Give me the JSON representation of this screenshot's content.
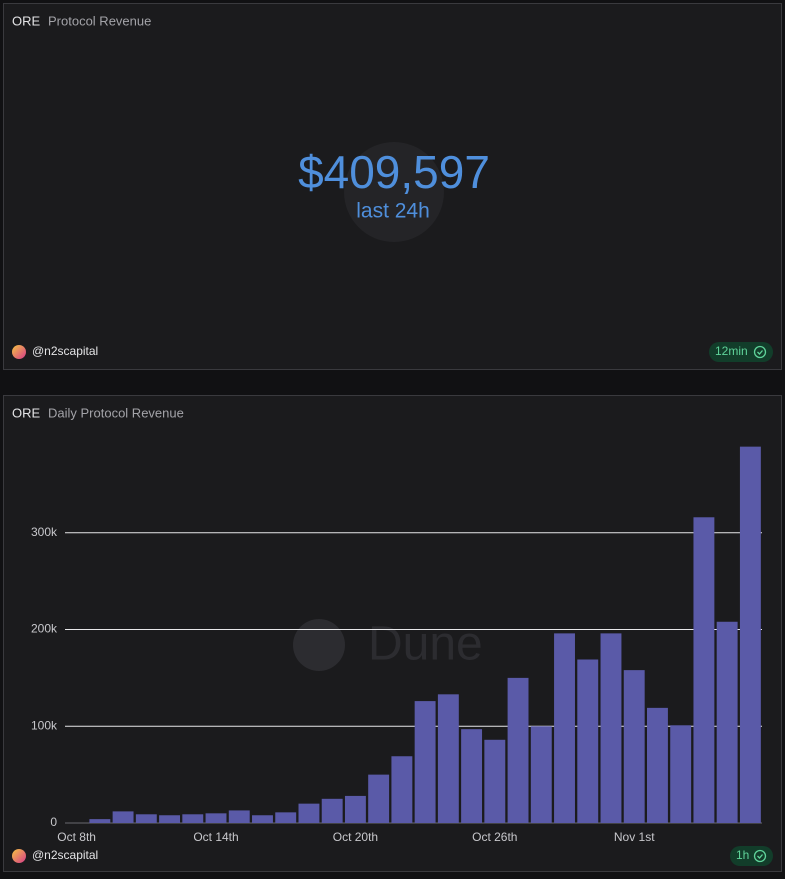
{
  "counter": {
    "project": "ORE",
    "title": "Protocol Revenue",
    "value": "$409,597",
    "caption": "last 24h",
    "author": "@n2scapital",
    "refresh": "12min"
  },
  "chart_data": {
    "type": "bar",
    "project": "ORE",
    "title": "Daily Protocol Revenue",
    "author": "@n2scapital",
    "refresh": "1h",
    "watermark": "Dune",
    "categories": [
      "Oct 8th",
      null,
      null,
      null,
      null,
      null,
      "Oct 14th",
      null,
      null,
      null,
      null,
      null,
      "Oct 20th",
      null,
      null,
      null,
      null,
      null,
      "Oct 26th",
      null,
      null,
      null,
      null,
      null,
      "Nov 1st",
      null,
      null,
      null,
      null,
      null
    ],
    "values": [
      0,
      4000,
      12000,
      9000,
      8000,
      9000,
      10000,
      13000,
      8000,
      11000,
      20000,
      25000,
      28000,
      50000,
      69000,
      126000,
      133000,
      97000,
      86000,
      150000,
      100000,
      196000,
      169000,
      196000,
      158000,
      119000,
      101000,
      316000,
      208000,
      389000
    ],
    "color": "#5a5aa8",
    "ylim": [
      0,
      400000
    ],
    "yticks": [
      0,
      {
        "value": 100000,
        "label": "100k"
      },
      {
        "value": 200000,
        "label": "200k"
      },
      {
        "value": 300000,
        "label": "300k"
      }
    ],
    "grid": true
  }
}
